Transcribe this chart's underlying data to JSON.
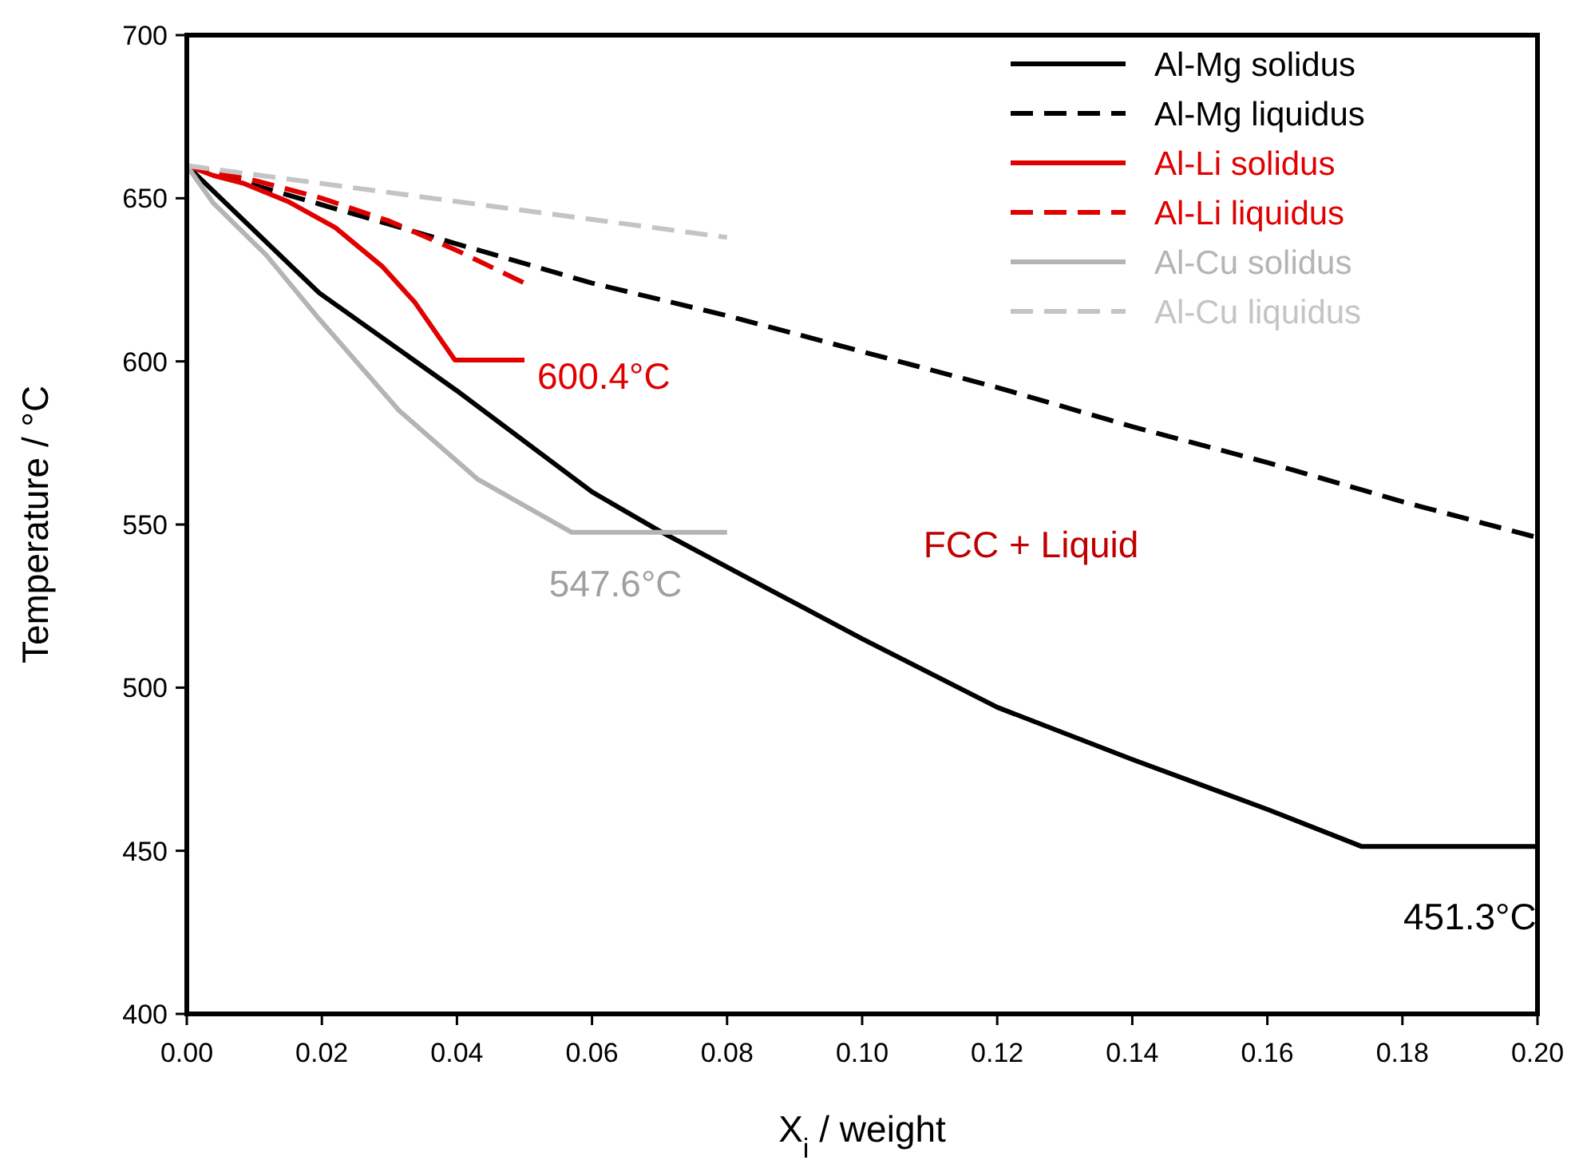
{
  "chart_data": {
    "type": "line",
    "xlabel": "X$_{i}$ / weight",
    "ylabel": "Temperature / °C",
    "xlim": [
      0,
      0.2
    ],
    "ylim": [
      400,
      700
    ],
    "xticks": [
      {
        "value": 0,
        "label": "0.00"
      },
      {
        "value": 0.02,
        "label": "0.02"
      },
      {
        "value": 0.04,
        "label": "0.04"
      },
      {
        "value": 0.06,
        "label": "0.06"
      },
      {
        "value": 0.08,
        "label": "0.08"
      },
      {
        "value": 0.1,
        "label": "0.10"
      },
      {
        "value": 0.12,
        "label": "0.12"
      },
      {
        "value": 0.14,
        "label": "0.14"
      },
      {
        "value": 0.16,
        "label": "0.16"
      },
      {
        "value": 0.18,
        "label": "0.18"
      },
      {
        "value": 0.2,
        "label": "0.20"
      }
    ],
    "yticks": [
      400,
      450,
      500,
      550,
      600,
      650,
      700
    ],
    "grid": false,
    "legend": "top right",
    "marker": "none",
    "series": [
      {
        "name": "Al-Mg solidus",
        "color": "#000000",
        "line_style": "solid",
        "x": [
          0,
          0.0196,
          0.04,
          0.06,
          0.07,
          0.0858,
          0.1,
          0.12,
          0.14,
          0.16,
          0.174,
          0.2
        ],
        "values": [
          660,
          621,
          591,
          560,
          548,
          530.6,
          515,
          494,
          478,
          462.7,
          451.3,
          451.3
        ]
      },
      {
        "name": "Al-Mg liquidus",
        "color": "#000000",
        "line_style": "dashed",
        "x": [
          0,
          0.02,
          0.04,
          0.06,
          0.08,
          0.1,
          0.12,
          0.14,
          0.16,
          0.18,
          0.2
        ],
        "values": [
          660,
          648,
          636,
          624,
          614,
          603,
          592,
          580,
          569,
          557,
          546
        ]
      },
      {
        "name": "Al-Li solidus",
        "color": "#e00000",
        "line_style": "solid",
        "x": [
          0,
          0.0039,
          0.0085,
          0.015,
          0.022,
          0.029,
          0.0338,
          0.0397,
          0.05
        ],
        "values": [
          660,
          657,
          654.5,
          649,
          641,
          629,
          618,
          600.4,
          600.4
        ]
      },
      {
        "name": "Al-Li liquidus",
        "color": "#e00000",
        "line_style": "dashed",
        "x": [
          0,
          0.01,
          0.02,
          0.03,
          0.04,
          0.05
        ],
        "values": [
          660,
          655.5,
          650,
          643,
          634,
          624
        ]
      },
      {
        "name": "Al-Cu solidus",
        "color": "#b4b4b4",
        "line_style": "solid",
        "x": [
          0,
          0.0039,
          0.0118,
          0.0196,
          0.0314,
          0.043,
          0.057,
          0.08
        ],
        "values": [
          660,
          648.6,
          632.5,
          613,
          585,
          564,
          547.6,
          547.6
        ]
      },
      {
        "name": "Al-Cu liquidus",
        "color": "#c4c4c4",
        "line_style": "dashed",
        "x": [
          0,
          0.08
        ],
        "values": [
          660,
          638
        ]
      }
    ],
    "annotations": [
      {
        "text": "600.4°C",
        "x": 0.05,
        "y": 600.4
      },
      {
        "text": "547.6°C",
        "x": 0.0635,
        "y": 547.6
      },
      {
        "text": "451.3°C",
        "x": 0.19,
        "y": 451.3
      },
      "FCC + Liquid"
    ]
  }
}
